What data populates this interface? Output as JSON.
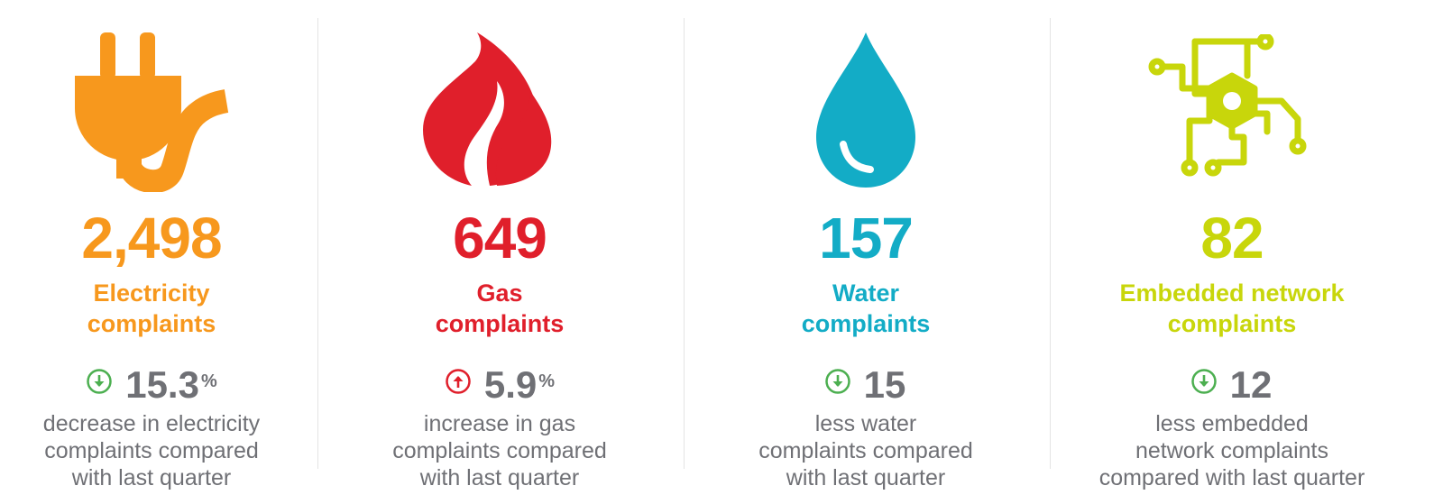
{
  "colors": {
    "electricity": "#f7981d",
    "gas": "#e01f2b",
    "water": "#13acc6",
    "embedded": "#c8d60b",
    "text_gray": "#6f7075",
    "down_green": "#4caf50",
    "up_red": "#e01f2b"
  },
  "panels": [
    {
      "icon": "plug-icon",
      "count": "2,498",
      "label_line1": "Electricity",
      "label_line2": "complaints",
      "change_direction": "down",
      "change_icon": "arrow-down-circle-icon",
      "change_value": "15.3",
      "change_unit": "%",
      "desc_line1": "decrease in electricity",
      "desc_line2": "complaints compared",
      "desc_line3": "with last quarter"
    },
    {
      "icon": "flame-icon",
      "count": "649",
      "label_line1": "Gas",
      "label_line2": "complaints",
      "change_direction": "up",
      "change_icon": "arrow-up-circle-icon",
      "change_value": "5.9",
      "change_unit": "%",
      "desc_line1": "increase in gas",
      "desc_line2": "complaints compared",
      "desc_line3": "with last quarter"
    },
    {
      "icon": "water-drop-icon",
      "count": "157",
      "label_line1": "Water",
      "label_line2": "complaints",
      "change_direction": "down",
      "change_icon": "arrow-down-circle-icon",
      "change_value": "15",
      "change_unit": "",
      "desc_line1": "less water",
      "desc_line2": "complaints compared",
      "desc_line3": "with last quarter"
    },
    {
      "icon": "circuit-network-icon",
      "count": "82",
      "label_line1": "Embedded network",
      "label_line2": "complaints",
      "change_direction": "down",
      "change_icon": "arrow-down-circle-icon",
      "change_value": "12",
      "change_unit": "",
      "desc_line1": "less embedded",
      "desc_line2": "network complaints",
      "desc_line3": "compared with last quarter"
    }
  ]
}
